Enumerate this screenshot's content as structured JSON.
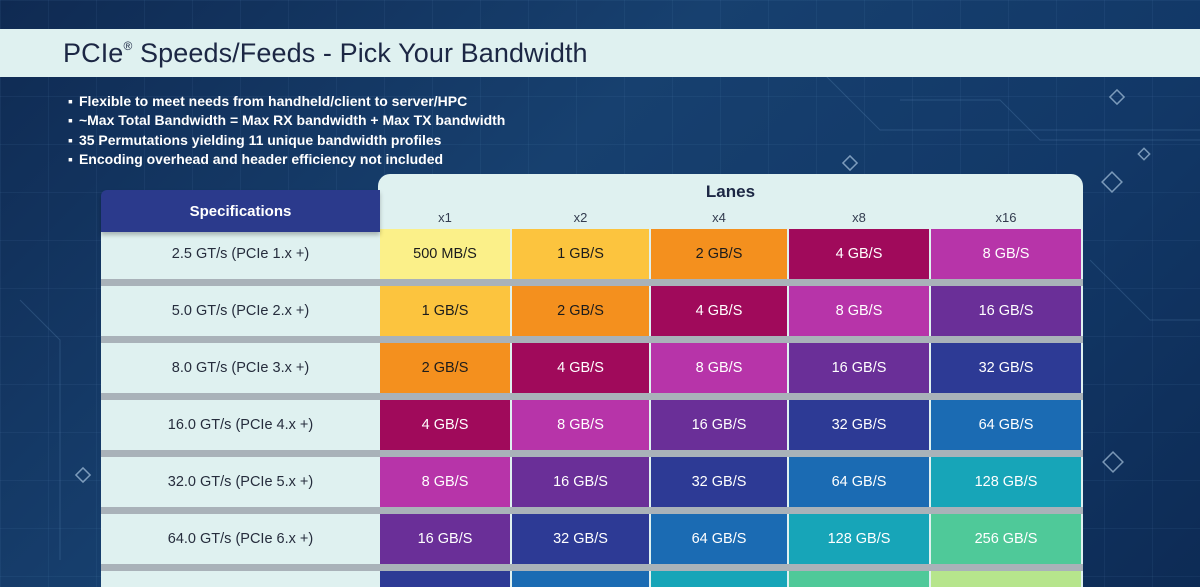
{
  "header": {
    "title": "PCIe",
    "title_mark": "®",
    "title_rest": " Speeds/Feeds - Pick Your Bandwidth"
  },
  "bullets": [
    "Flexible to meet needs from handheld/client to server/HPC",
    "~Max Total Bandwidth = Max RX bandwidth + Max TX bandwidth",
    "35 Permutations yielding 11 unique bandwidth profiles",
    "Encoding overhead and header efficiency not included"
  ],
  "chart_data": {
    "type": "table",
    "column_group_label": "Lanes",
    "row_header_label": "Specifications",
    "columns": [
      "x1",
      "x2",
      "x4",
      "x8",
      "x16"
    ],
    "rows": [
      "2.5 GT/s (PCIe 1.x +)",
      "5.0 GT/s (PCIe 2.x +)",
      "8.0 GT/s (PCIe 3.x +)",
      "16.0 GT/s (PCIe 4.x +)",
      "32.0 GT/s (PCIe 5.x +)",
      "64.0 GT/s (PCIe 6.x +)"
    ],
    "cells": [
      [
        "500 MB/S",
        "1 GB/S",
        "2 GB/S",
        "4 GB/S",
        "8 GB/S"
      ],
      [
        "1 GB/S",
        "2 GB/S",
        "4 GB/S",
        "8 GB/S",
        "16 GB/S"
      ],
      [
        "2 GB/S",
        "4 GB/S",
        "8 GB/S",
        "16 GB/S",
        "32 GB/S"
      ],
      [
        "4 GB/S",
        "8 GB/S",
        "16 GB/S",
        "32 GB/S",
        "64 GB/S"
      ],
      [
        "8 GB/S",
        "16 GB/S",
        "32 GB/S",
        "64 GB/S",
        "128 GB/S"
      ],
      [
        "16 GB/S",
        "32 GB/S",
        "64 GB/S",
        "128 GB/S",
        "256 GB/S"
      ]
    ],
    "value_colors": {
      "500 MB/S": "#fbf089",
      "1 GB/S": "#fcc43e",
      "2 GB/S": "#f4901e",
      "4 GB/S": "#a00a5b",
      "8 GB/S": "#b734a9",
      "16 GB/S": "#6a2f98",
      "32 GB/S": "#2d3a95",
      "64 GB/S": "#1b6bb3",
      "128 GB/S": "#17a5b8",
      "256 GB/S": "#4fc999",
      "512 GB/S": "#b6e58c"
    },
    "partial_next_row_colors": [
      "#2d3a95",
      "#1b6bb3",
      "#17a5b8",
      "#4fc999",
      "#b6e58c"
    ]
  }
}
